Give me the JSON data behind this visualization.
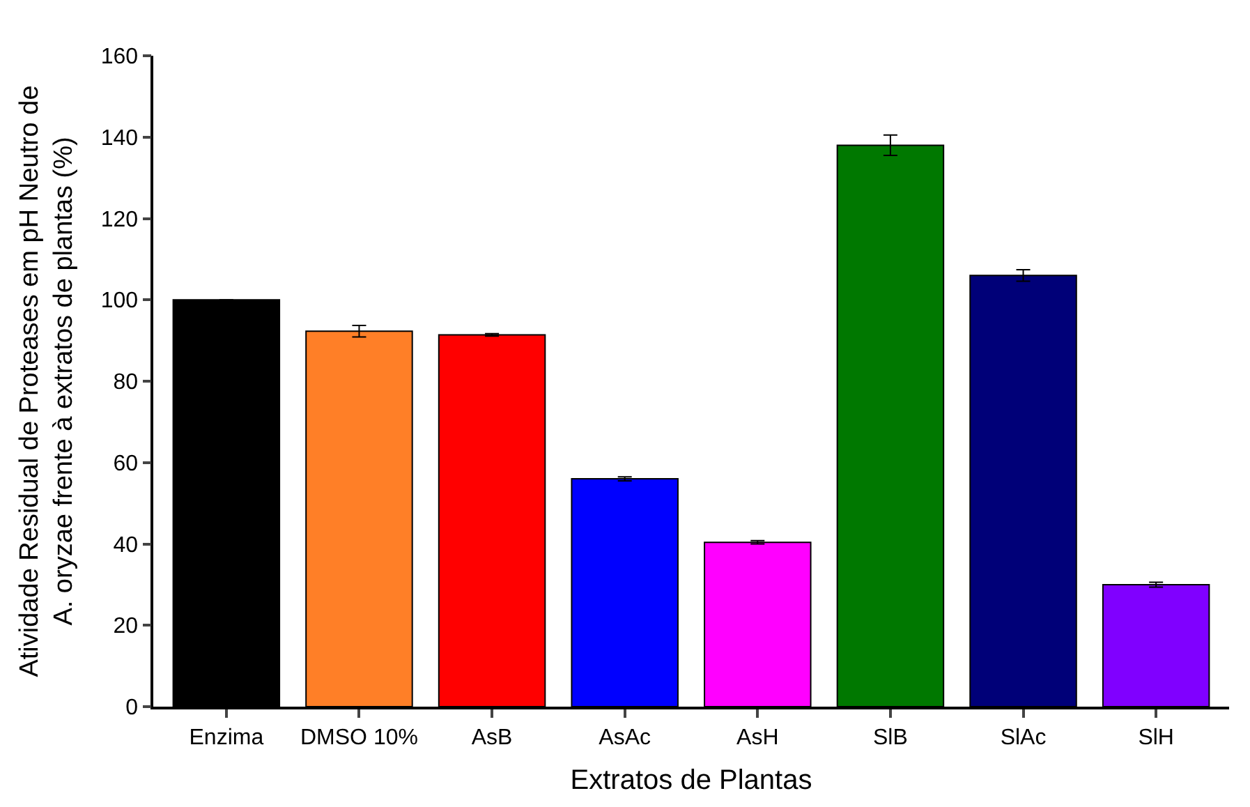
{
  "chart_data": {
    "type": "bar",
    "xlabel": "Extratos de Plantas",
    "ylabel": "Atividade Residual de Proteases em pH Neutro de\nA. oryzae frente à extratos de plantas (%)",
    "categories": [
      "Enzima",
      "DMSO 10%",
      "AsB",
      "AsAc",
      "AsH",
      "SlB",
      "SlAc",
      "SlH"
    ],
    "values": [
      100,
      92.3,
      91.4,
      56,
      40.4,
      138,
      106,
      30
    ],
    "errors": [
      null,
      1.4,
      0.3,
      0.5,
      0.4,
      2.5,
      1.4,
      0.6
    ],
    "colors": [
      "#000000",
      "#ff7f27",
      "#ff0000",
      "#0000ff",
      "#ff00ff",
      "#007800",
      "#000078",
      "#8000ff"
    ],
    "ylim": [
      0,
      160
    ],
    "yticks": [
      0,
      20,
      40,
      60,
      80,
      100,
      120,
      140,
      160
    ]
  }
}
